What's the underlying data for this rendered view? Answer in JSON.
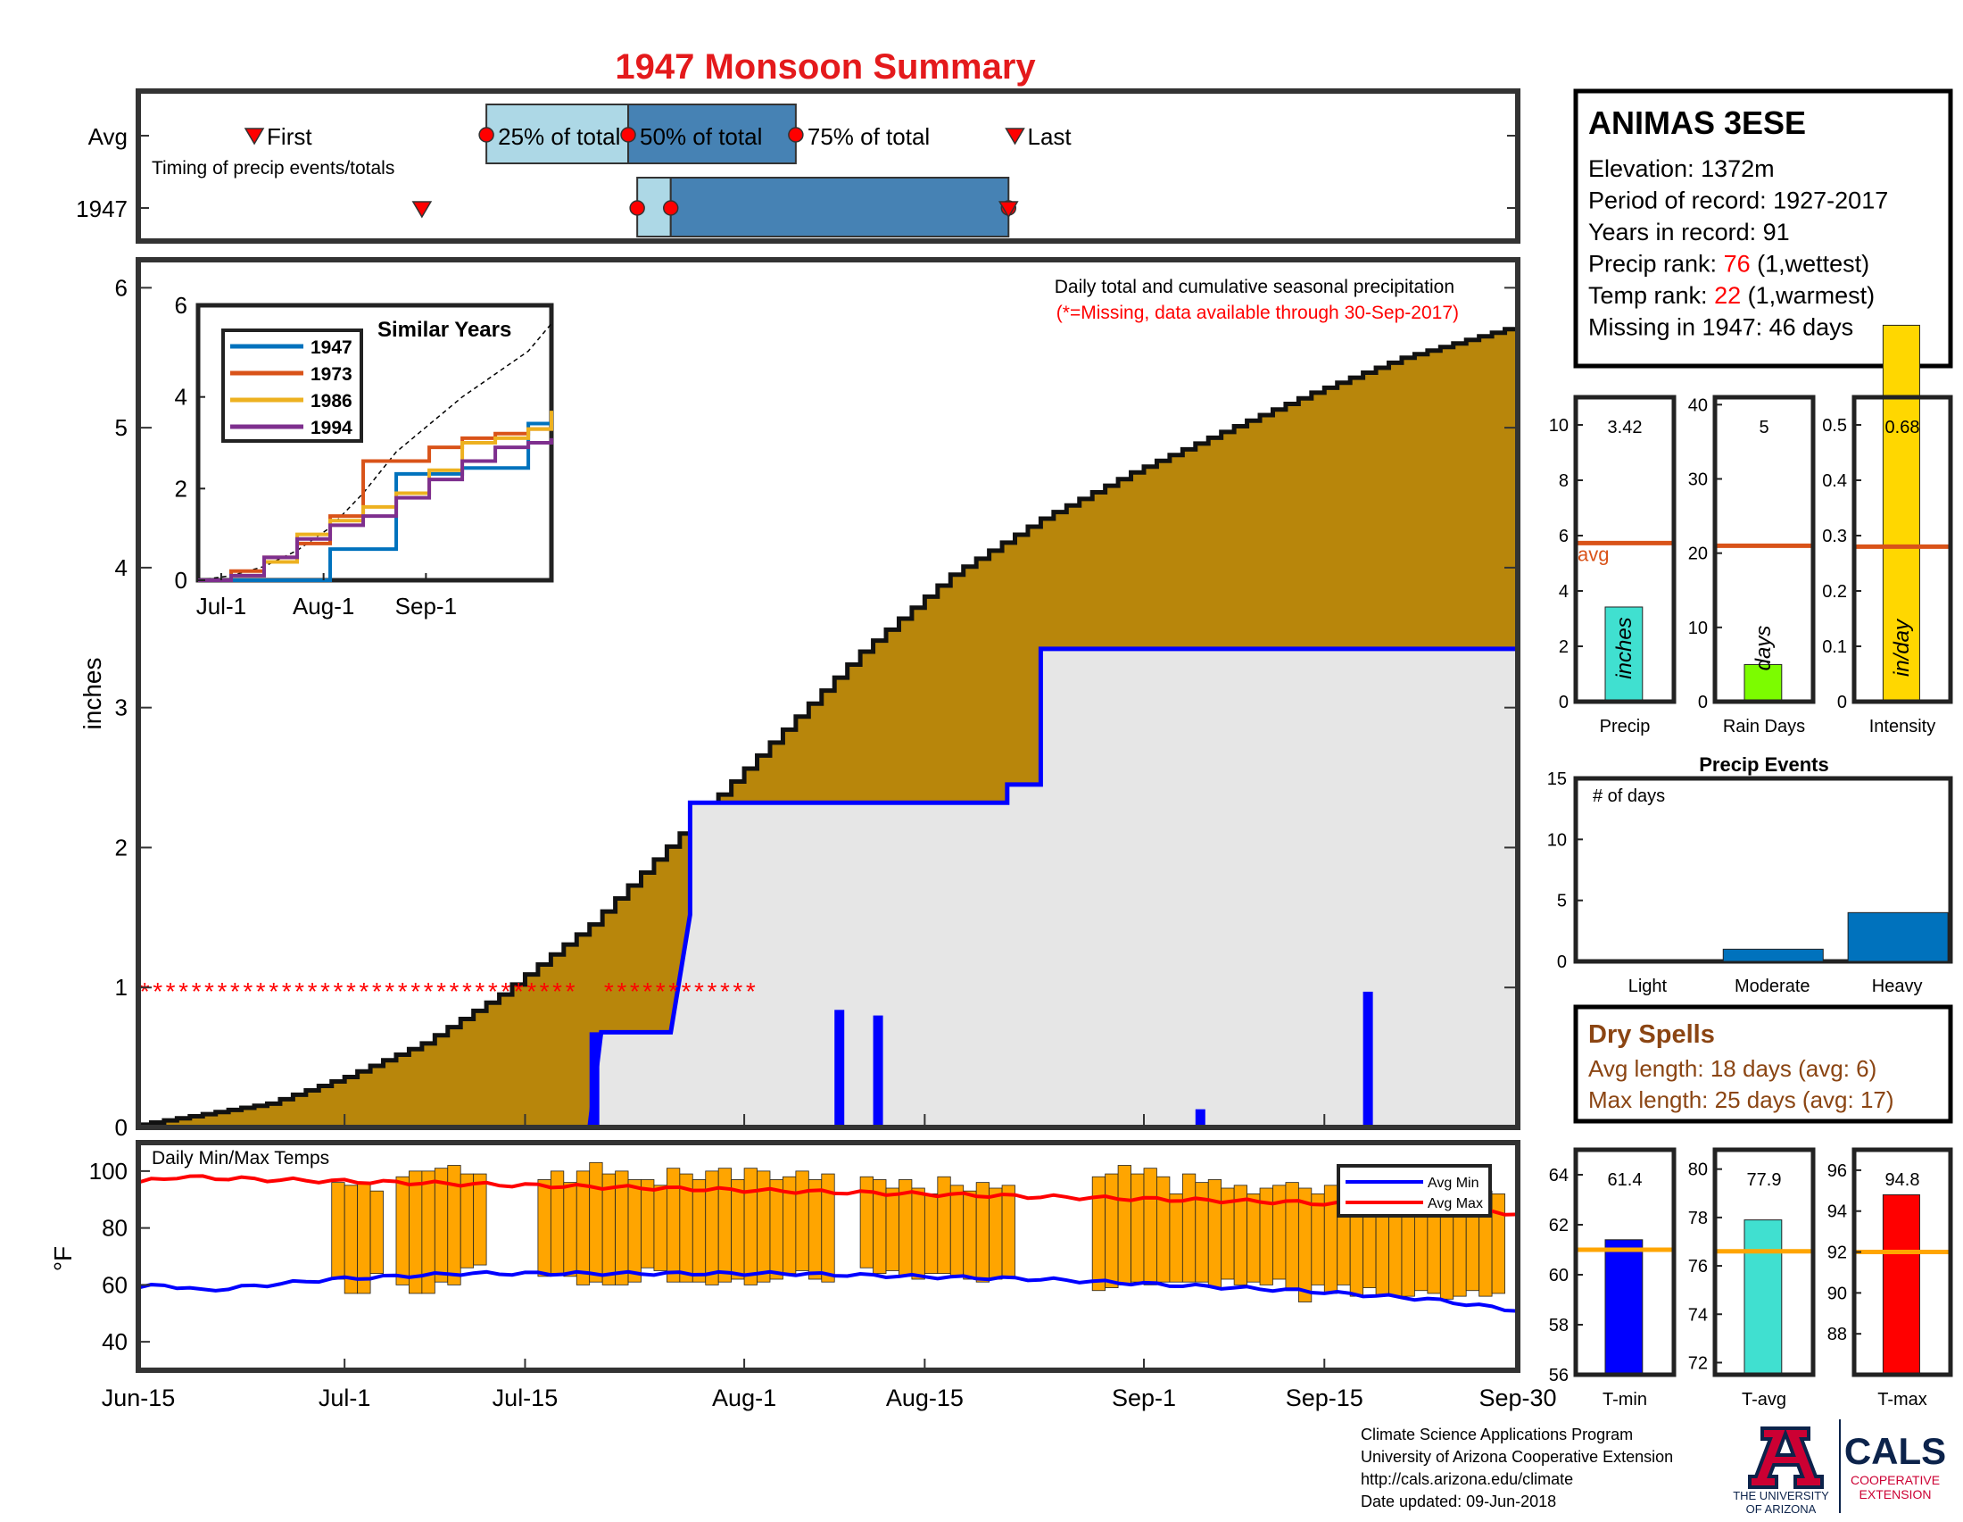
{
  "title": "1947 Monsoon Summary",
  "timing": {
    "row_labels": [
      "Avg",
      "1947"
    ],
    "subtitle": "Timing of precip events/totals",
    "labels": {
      "first": "First",
      "p25": "25% of total",
      "p50": "50% of total",
      "p75": "75% of total",
      "last": "Last"
    },
    "avg_days": {
      "first": 9,
      "p25": 27,
      "p50": 38,
      "p75": 51,
      "last": 68
    },
    "year_days": {
      "first": 22,
      "p25": 38.7,
      "p50": 41.3,
      "p75": 67.5,
      "last": 67.5
    }
  },
  "station": {
    "name": "ANIMAS 3ESE",
    "lines": [
      {
        "label": "Elevation: ",
        "value": "1372m",
        "suffix": "",
        "highlight": false
      },
      {
        "label": "Period of record: ",
        "value": "1927-2017",
        "suffix": "",
        "highlight": false
      },
      {
        "label": "Years in record: ",
        "value": "91",
        "suffix": "",
        "highlight": false
      },
      {
        "label": "Precip rank: ",
        "value": "76",
        "suffix": " (1,wettest)",
        "highlight": true
      },
      {
        "label": "Temp rank: ",
        "value": "22",
        "suffix": " (1,warmest)",
        "highlight": true
      },
      {
        "label": "Missing in 1947: ",
        "value": "46 days",
        "suffix": "",
        "highlight": false
      }
    ]
  },
  "colors": {
    "cumulative_fill": "#b8860b",
    "observed_fill": "#e6e6e6",
    "observed_line": "#0000ff",
    "missing": "#ff0000",
    "temp_bar": "#ffa500",
    "timing_light": "#add8e6",
    "timing_dark": "#4682b4",
    "title": "#e41a1c",
    "dry_spell": "#8b4513"
  },
  "main": {
    "header": "Daily total and cumulative seasonal precipitation",
    "missing_note": "(*=Missing, data available through 30-Sep-2017)",
    "ylabel": "inches",
    "xticks": [
      "Jun-15",
      "Jul-1",
      "Jul-15",
      "Aug-1",
      "Aug-15",
      "Sep-1",
      "Sep-15",
      "Sep-30"
    ]
  },
  "inset": {
    "title": "Similar Years",
    "series_names": [
      "1947",
      "1973",
      "1986",
      "1994"
    ],
    "series_colors": [
      "#0072bd",
      "#d95319",
      "#edb120",
      "#7e2f8e"
    ],
    "xticks": [
      "Jul-1",
      "Aug-1",
      "Sep-1"
    ]
  },
  "bars": {
    "precip": {
      "value": "3.42",
      "unit": "inches",
      "label": "Precip",
      "avg_text": "avg"
    },
    "rain_days": {
      "value": "5",
      "unit": "days",
      "label": "Rain Days"
    },
    "intensity": {
      "value": "0.68",
      "unit": "in/day",
      "label": "Intensity"
    }
  },
  "events": {
    "title": "Precip Events",
    "ylabel": "# of days",
    "categories": [
      "Light",
      "Moderate",
      "Heavy"
    ]
  },
  "dry_spells": {
    "title": "Dry Spells",
    "avg_line": "Avg length: 18 days (avg: 6)",
    "max_line": "Max length: 25 days (avg: 17)"
  },
  "temps": {
    "title": "Daily Min/Max Temps",
    "ylabel": "°F",
    "legend_min": "Avg Min",
    "legend_max": "Avg Max"
  },
  "temp_bars": {
    "tmin": {
      "value": "61.4",
      "label": "T-min"
    },
    "tavg": {
      "value": "77.9",
      "label": "T-avg"
    },
    "tmax": {
      "value": "94.8",
      "label": "T-max"
    }
  },
  "footer": {
    "lines": [
      "Climate Science Applications Program",
      "University of Arizona Cooperative Extension",
      "http://cals.arizona.edu/climate",
      " Date updated: 09-Jun-2018"
    ],
    "ua_name_1": "THE UNIVERSITY",
    "ua_name_2": "OF ARIZONA",
    "cals": "CALS",
    "cals_sub_1": "COOPERATIVE",
    "cals_sub_2": "EXTENSION"
  },
  "chart_data": [
    {
      "type": "area",
      "title": "Daily total and cumulative seasonal precipitation",
      "xlabel": "",
      "ylabel": "inches",
      "x_ticks": [
        "Jun-15",
        "Jul-1",
        "Jul-15",
        "Aug-1",
        "Aug-15",
        "Sep-1",
        "Sep-15",
        "Sep-30"
      ],
      "ylim": [
        0,
        6.2
      ],
      "avg_cumulative": {
        "day": [
          0,
          10,
          16,
          22,
          28,
          35,
          42,
          49,
          56,
          63,
          70,
          77,
          84,
          91,
          98,
          107
        ],
        "value": [
          0.02,
          0.17,
          0.36,
          0.6,
          0.95,
          1.45,
          2.1,
          2.75,
          3.4,
          3.95,
          4.35,
          4.68,
          4.97,
          5.25,
          5.5,
          5.73
        ]
      },
      "observed_1947_cumulative": {
        "day": [
          0,
          35,
          35.9,
          37.6,
          38.3,
          39.4,
          40.6,
          41.3,
          42.8,
          42.8,
          67.4,
          67.4,
          67.8,
          70,
          70,
          107
        ],
        "value": [
          0,
          0,
          0.68,
          0.68,
          0.68,
          0.68,
          0.68,
          0.68,
          1.52,
          2.32,
          2.32,
          2.45,
          2.45,
          2.45,
          3.42,
          3.42
        ]
      },
      "daily_precip": [
        {
          "date": "Jul-20",
          "inches": 0.68
        },
        {
          "date": "Aug-8",
          "inches": 0.84
        },
        {
          "date": "Aug-11",
          "inches": 0.8
        },
        {
          "date": "Sep-5",
          "inches": 0.13
        },
        {
          "date": "Sep-18",
          "inches": 0.97
        }
      ],
      "missing_days": {
        "from": [
          "Jun-15",
          "Jul-21"
        ],
        "to": [
          "Jul-18",
          "Aug-1"
        ],
        "y": 1
      }
    },
    {
      "type": "line",
      "title": "Similar Years",
      "x_ticks": [
        "Jul-1",
        "Aug-1",
        "Sep-1"
      ],
      "ylim": [
        0,
        6
      ],
      "x": [
        0,
        10,
        20,
        30,
        40,
        50,
        60,
        70,
        80,
        90,
        100,
        107
      ],
      "series": [
        {
          "name": "1947",
          "values": [
            0,
            0,
            0,
            0,
            0.68,
            0.68,
            2.32,
            2.32,
            2.45,
            2.45,
            3.42,
            3.42
          ]
        },
        {
          "name": "1973",
          "values": [
            0,
            0.2,
            0.5,
            0.8,
            1.4,
            2.6,
            2.6,
            2.9,
            3.1,
            3.2,
            3.3,
            3.4
          ]
        },
        {
          "name": "1986",
          "values": [
            0,
            0.1,
            0.4,
            1.0,
            1.3,
            1.6,
            1.9,
            2.4,
            3.0,
            3.1,
            3.3,
            3.7
          ]
        },
        {
          "name": "1994",
          "values": [
            0,
            0.1,
            0.5,
            0.9,
            1.2,
            1.4,
            1.8,
            2.2,
            2.6,
            2.9,
            3.0,
            3.1
          ]
        }
      ],
      "avg_dashed": [
        0,
        0.1,
        0.3,
        0.65,
        1.15,
        1.9,
        2.8,
        3.4,
        4.0,
        4.5,
        5.0,
        5.6
      ]
    },
    {
      "type": "bar",
      "categories": [
        "Precip",
        "Rain Days",
        "Intensity"
      ],
      "values": [
        3.42,
        5,
        0.68
      ],
      "avg": [
        5.73,
        21,
        0.28
      ],
      "ylims": [
        [
          0,
          11
        ],
        [
          0,
          41
        ],
        [
          0,
          0.55
        ]
      ]
    },
    {
      "type": "bar",
      "title": "Precip Events",
      "ylabel": "# of days",
      "categories": [
        "Light",
        "Moderate",
        "Heavy"
      ],
      "values": [
        0,
        1,
        4
      ],
      "ylim": [
        0,
        15
      ]
    },
    {
      "type": "bar",
      "title": "Daily Min/Max Temps",
      "ylabel": "°F",
      "ylim": [
        30,
        110
      ],
      "x_ticks": [
        "Jun-15",
        "Jul-1",
        "Jul-15",
        "Aug-1",
        "Aug-15",
        "Sep-1",
        "Sep-15",
        "Sep-30"
      ],
      "daily_ranges": [
        [
          16,
          62,
          96
        ],
        [
          17,
          57,
          95
        ],
        [
          18,
          57,
          96
        ],
        [
          19,
          64,
          93
        ],
        [
          21,
          60,
          98
        ],
        [
          22,
          57,
          100
        ],
        [
          23,
          57,
          100
        ],
        [
          24,
          61,
          101
        ],
        [
          25,
          60,
          102
        ],
        [
          26,
          66,
          99
        ],
        [
          27,
          67,
          99
        ],
        [
          32,
          63,
          97
        ],
        [
          33,
          64,
          100
        ],
        [
          34,
          63,
          96
        ],
        [
          35,
          60,
          100
        ],
        [
          36,
          61,
          103
        ],
        [
          37,
          60,
          99
        ],
        [
          38,
          60,
          100
        ],
        [
          39,
          61,
          97
        ],
        [
          40,
          66,
          97
        ],
        [
          41,
          65,
          95
        ],
        [
          42,
          61,
          101
        ],
        [
          43,
          61,
          99
        ],
        [
          44,
          61,
          97
        ],
        [
          45,
          60,
          100
        ],
        [
          46,
          61,
          101
        ],
        [
          47,
          62,
          97
        ],
        [
          48,
          60,
          101
        ],
        [
          49,
          61,
          100
        ],
        [
          50,
          62,
          97
        ],
        [
          51,
          64,
          98
        ],
        [
          52,
          65,
          100
        ],
        [
          53,
          62,
          97
        ],
        [
          54,
          61,
          99
        ],
        [
          57,
          66,
          98
        ],
        [
          58,
          64,
          97
        ],
        [
          59,
          65,
          94
        ],
        [
          60,
          63,
          97
        ],
        [
          61,
          62,
          94
        ],
        [
          62,
          64,
          92
        ],
        [
          63,
          64,
          98
        ],
        [
          64,
          63,
          95
        ],
        [
          65,
          62,
          93
        ],
        [
          66,
          61,
          96
        ],
        [
          67,
          62,
          94
        ],
        [
          68,
          63,
          95
        ],
        [
          75,
          58,
          98
        ],
        [
          76,
          59,
          99
        ],
        [
          77,
          60,
          102
        ],
        [
          78,
          61,
          99
        ],
        [
          79,
          60,
          101
        ],
        [
          80,
          61,
          98
        ],
        [
          81,
          61,
          92
        ],
        [
          82,
          61,
          99
        ],
        [
          83,
          61,
          96
        ],
        [
          84,
          59,
          97
        ],
        [
          85,
          62,
          94
        ],
        [
          86,
          60,
          95
        ],
        [
          87,
          61,
          92
        ],
        [
          88,
          60,
          94
        ],
        [
          89,
          62,
          95
        ],
        [
          90,
          58,
          96
        ],
        [
          91,
          54,
          94
        ],
        [
          92,
          60,
          92
        ],
        [
          93,
          57,
          95
        ],
        [
          94,
          60,
          95
        ],
        [
          95,
          56,
          93
        ],
        [
          96,
          59,
          95
        ],
        [
          97,
          56,
          93
        ],
        [
          98,
          56,
          91
        ],
        [
          99,
          56,
          94
        ],
        [
          100,
          58,
          92
        ],
        [
          101,
          57,
          96
        ],
        [
          102,
          55,
          94
        ],
        [
          103,
          56,
          96
        ],
        [
          104,
          58,
          92
        ],
        [
          105,
          56,
          93
        ],
        [
          106,
          57,
          92
        ]
      ],
      "avg_min": {
        "day": [
          0,
          2,
          5,
          10,
          15,
          20,
          25,
          30,
          40,
          50,
          60,
          70,
          80,
          90,
          100,
          107
        ],
        "value": [
          59,
          60,
          58,
          60,
          62,
          63,
          64,
          64,
          64,
          64,
          63,
          62,
          60,
          58,
          55,
          51
        ]
      },
      "avg_max": {
        "day": [
          0,
          3,
          10,
          20,
          30,
          40,
          50,
          60,
          70,
          80,
          90,
          100,
          107
        ],
        "value": [
          96,
          98,
          97,
          96,
          95,
          94,
          93,
          92,
          91,
          90,
          89,
          87,
          85
        ]
      }
    },
    {
      "type": "bar",
      "categories": [
        "T-min",
        "T-avg",
        "T-max"
      ],
      "values": [
        61.4,
        77.9,
        94.8
      ],
      "avg": [
        61,
        76.6,
        92
      ],
      "ylims": [
        [
          56,
          65
        ],
        [
          71.5,
          80.8
        ],
        [
          86,
          97
        ]
      ]
    }
  ]
}
